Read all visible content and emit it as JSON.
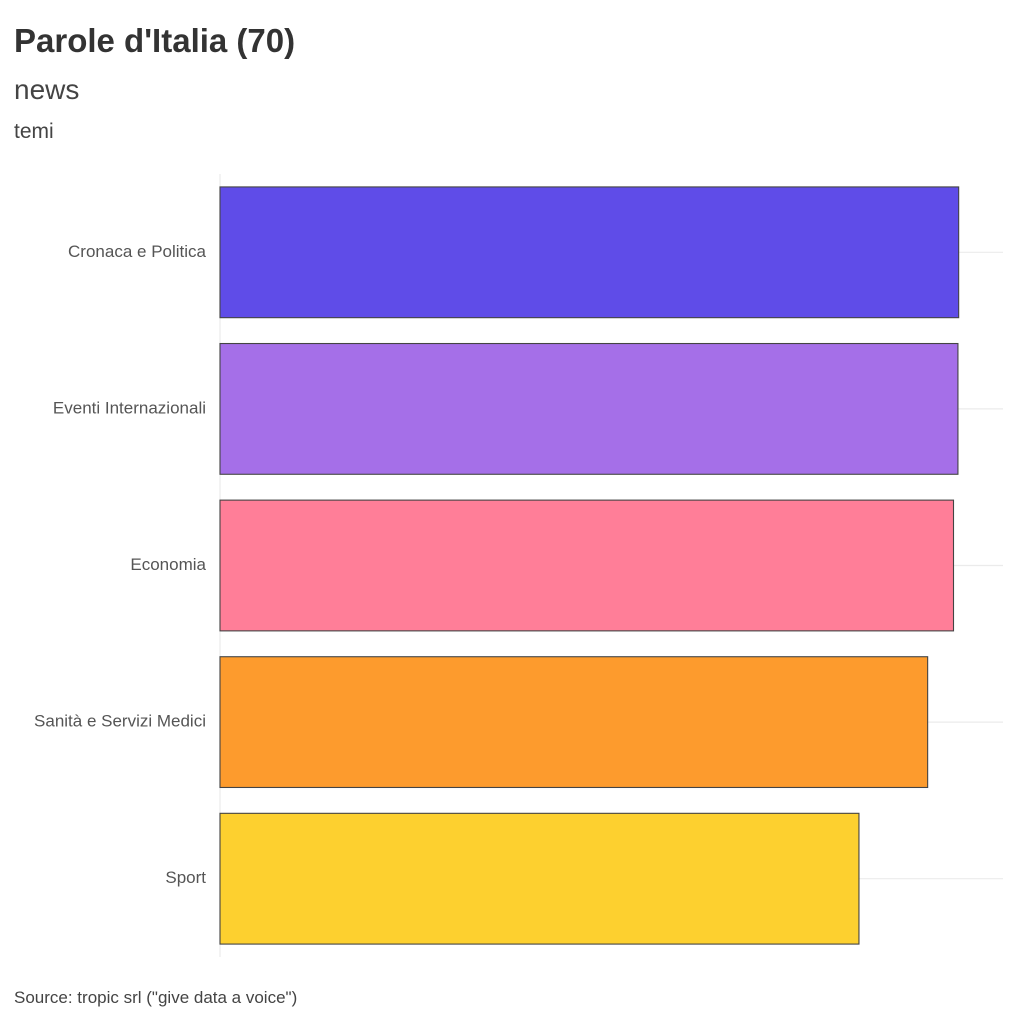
{
  "header": {
    "title": "Parole d'Italia (70)",
    "subtitle": "news",
    "axis_title": "temi"
  },
  "caption": "Source: tropic srl (\"give data a voice\")",
  "chart_data": {
    "type": "bar",
    "orientation": "horizontal",
    "title": "Parole d'Italia (70)",
    "subtitle": "news",
    "ylabel": "temi",
    "xlabel": "",
    "categories": [
      "Cronaca e Politica",
      "Eventi Internazionali",
      "Economia",
      "Sanità e Servizi Medici",
      "Sport"
    ],
    "values": [
      100,
      99.9,
      99.3,
      95.8,
      86.5
    ],
    "xlim": [
      0,
      106
    ],
    "colors": [
      "#5f4ce8",
      "#a56fe8",
      "#ff7e98",
      "#fd9b2d",
      "#fdd02f"
    ],
    "grid": true,
    "legend": "none",
    "x_tick_labels_shown": false
  }
}
